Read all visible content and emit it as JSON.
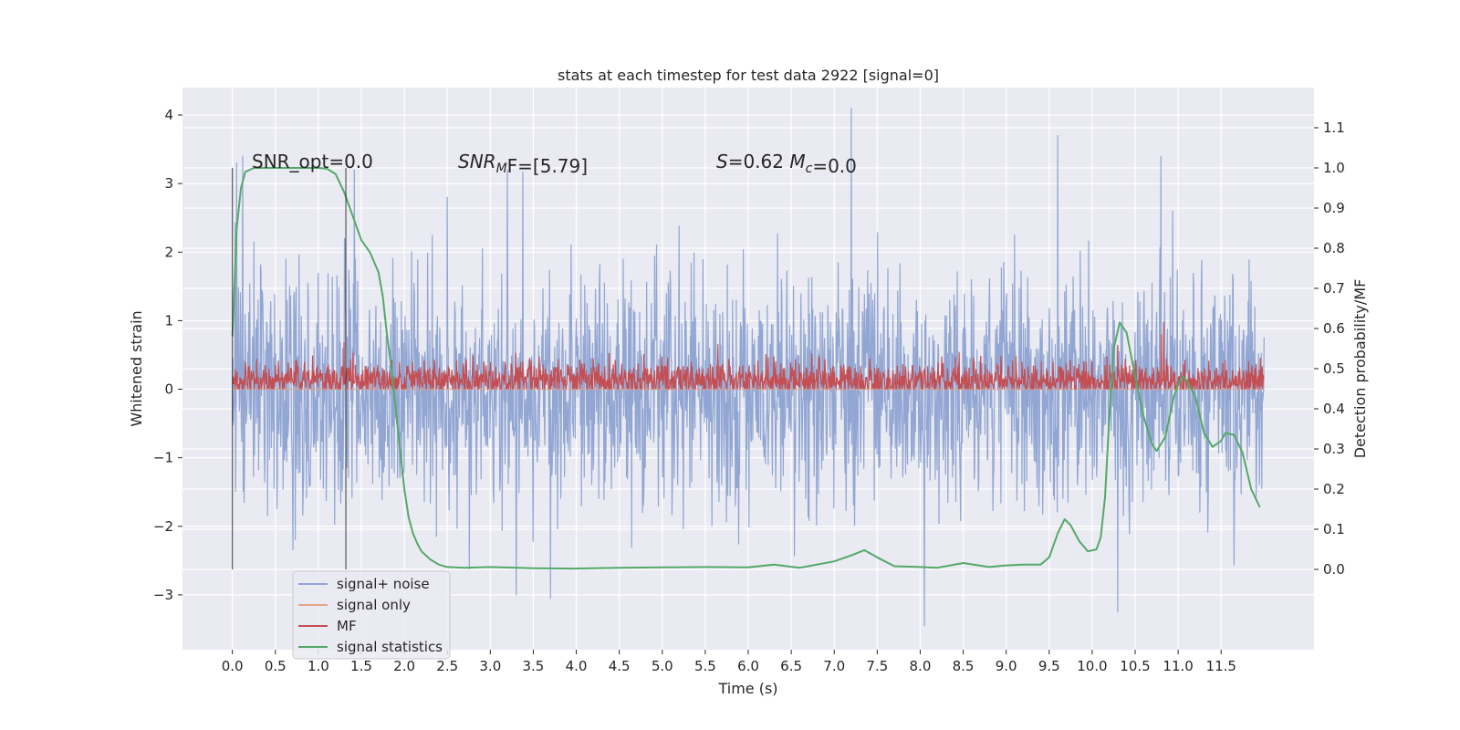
{
  "chart_data": {
    "type": "line",
    "title": "stats at each timestep for test data 2922 [signal=0]",
    "xlabel": "Time (s)",
    "ylabel_left": "Whitened strain",
    "ylabel_right": "Detection probability/MF",
    "xlim": [
      -0.58,
      12.58
    ],
    "ylim_left": [
      -3.8,
      4.4
    ],
    "ylim_right": [
      -0.2,
      1.2
    ],
    "x_ticks": [
      "0.0",
      "0.5",
      "1.0",
      "1.5",
      "2.0",
      "2.5",
      "3.0",
      "3.5",
      "4.0",
      "4.5",
      "5.0",
      "5.5",
      "6.0",
      "6.5",
      "7.0",
      "7.5",
      "8.0",
      "8.5",
      "9.0",
      "9.5",
      "10.0",
      "10.5",
      "11.0",
      "11.5"
    ],
    "y_ticks_left": [
      "4",
      "3",
      "2",
      "1",
      "0",
      "−1",
      "−2",
      "−3"
    ],
    "y_ticks_right": [
      "1.1",
      "1.0",
      "0.9",
      "0.8",
      "0.7",
      "0.6",
      "0.5",
      "0.4",
      "0.3",
      "0.2",
      "0.1",
      "0.0"
    ],
    "grid": true,
    "legend_position": "lower-left",
    "vlines_x": [
      0.0,
      1.32
    ],
    "annotations": [
      {
        "segments": [
          {
            "text": "SNR_opt=0.0",
            "italic": false
          }
        ]
      },
      {
        "segments": [
          {
            "text": "SNR",
            "italic": true
          },
          {
            "text": "M",
            "italic": true,
            "sub": true
          },
          {
            "text": "F=[5.79]",
            "italic": false
          }
        ]
      },
      {
        "segments": [
          {
            "text": "S",
            "italic": true
          },
          {
            "text": "=0.62   ",
            "italic": false
          },
          {
            "text": "M",
            "italic": true
          },
          {
            "text": "c",
            "italic": true,
            "sub": true
          },
          {
            "text": "=0.0",
            "italic": false
          }
        ]
      }
    ],
    "series": [
      {
        "name": "signal+ noise",
        "color": "#91a6d3",
        "axis": "left",
        "kind": "noise",
        "x_range": [
          0.0,
          12.0
        ],
        "sigma": 0.85,
        "approx_envelope": [
          -3.45,
          4.1
        ],
        "spikes": [
          [
            0.05,
            3.3
          ],
          [
            0.12,
            3.4
          ],
          [
            1.42,
            3.2
          ],
          [
            2.5,
            2.8
          ],
          [
            3.2,
            3.2
          ],
          [
            7.2,
            4.1
          ],
          [
            9.6,
            3.7
          ],
          [
            10.8,
            3.4
          ],
          [
            8.05,
            -3.45
          ],
          [
            10.3,
            -3.25
          ],
          [
            3.3,
            -3.0
          ],
          [
            3.7,
            -3.05
          ]
        ]
      },
      {
        "name": "signal only",
        "color": "#e4a48a",
        "axis": "left",
        "kind": "flat",
        "x": [
          0.0,
          12.0
        ],
        "y": [
          0.0,
          0.0
        ]
      },
      {
        "name": "MF",
        "color": "#c44e52",
        "axis": "right",
        "kind": "noise",
        "x_range": [
          0.0,
          12.0
        ],
        "center": 0.47,
        "approx_range": [
          0.45,
          0.6
        ],
        "spikes": [
          [
            10.83,
            0.615
          ],
          [
            1.3,
            0.565
          ],
          [
            5.65,
            0.56
          ]
        ]
      },
      {
        "name": "signal statistics",
        "color": "#55a868",
        "axis": "right",
        "kind": "line",
        "x": [
          0.0,
          0.05,
          0.1,
          0.15,
          0.25,
          0.5,
          0.8,
          1.0,
          1.1,
          1.2,
          1.3,
          1.4,
          1.5,
          1.6,
          1.7,
          1.75,
          1.8,
          1.85,
          1.9,
          1.95,
          2.0,
          2.05,
          2.1,
          2.15,
          2.2,
          2.3,
          2.4,
          2.5,
          2.7,
          3.0,
          3.5,
          4.0,
          4.5,
          5.0,
          5.5,
          6.0,
          6.3,
          6.6,
          7.0,
          7.2,
          7.35,
          7.5,
          7.7,
          8.0,
          8.2,
          8.5,
          8.8,
          9.0,
          9.2,
          9.4,
          9.5,
          9.6,
          9.68,
          9.75,
          9.85,
          9.95,
          10.05,
          10.1,
          10.15,
          10.2,
          10.25,
          10.32,
          10.4,
          10.5,
          10.6,
          10.7,
          10.75,
          10.85,
          10.95,
          11.0,
          11.05,
          11.1,
          11.2,
          11.3,
          11.4,
          11.5,
          11.55,
          11.65,
          11.75,
          11.85,
          11.95
        ],
        "y": [
          0.58,
          0.85,
          0.95,
          0.99,
          1.0,
          1.0,
          1.0,
          1.0,
          0.998,
          0.985,
          0.94,
          0.88,
          0.82,
          0.79,
          0.74,
          0.68,
          0.58,
          0.5,
          0.4,
          0.3,
          0.2,
          0.13,
          0.09,
          0.065,
          0.045,
          0.025,
          0.012,
          0.006,
          0.004,
          0.006,
          0.003,
          0.002,
          0.004,
          0.005,
          0.006,
          0.005,
          0.012,
          0.004,
          0.02,
          0.035,
          0.048,
          0.03,
          0.008,
          0.006,
          0.004,
          0.016,
          0.006,
          0.01,
          0.012,
          0.012,
          0.03,
          0.09,
          0.125,
          0.11,
          0.07,
          0.045,
          0.05,
          0.08,
          0.18,
          0.38,
          0.55,
          0.615,
          0.59,
          0.48,
          0.38,
          0.31,
          0.295,
          0.33,
          0.43,
          0.46,
          0.48,
          0.47,
          0.43,
          0.34,
          0.305,
          0.32,
          0.34,
          0.335,
          0.29,
          0.2,
          0.155
        ]
      }
    ]
  }
}
